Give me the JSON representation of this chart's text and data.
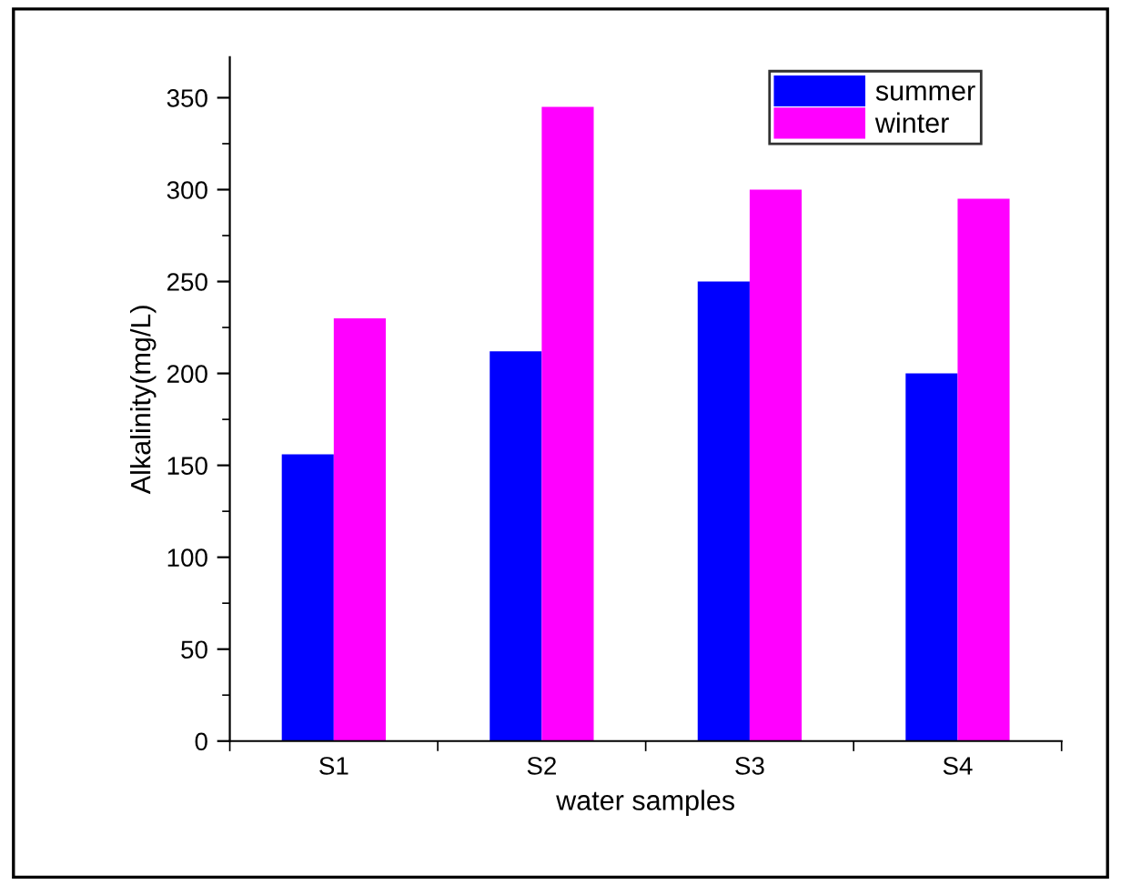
{
  "chart_data": {
    "type": "bar",
    "xlabel": "water samples",
    "ylabel": "Alkalinity(mg/L)",
    "categories": [
      "S1",
      "S2",
      "S3",
      "S4"
    ],
    "series": [
      {
        "name": "summer",
        "color": "#0000ff",
        "values": [
          156,
          212,
          250,
          200
        ]
      },
      {
        "name": "winter",
        "color": "#ff00ff",
        "values": [
          230,
          345,
          300,
          295
        ]
      }
    ],
    "ylim": [
      0,
      372
    ],
    "yticks": [
      0,
      50,
      100,
      150,
      200,
      250,
      300,
      350
    ],
    "grid": false,
    "legend": "top right"
  }
}
